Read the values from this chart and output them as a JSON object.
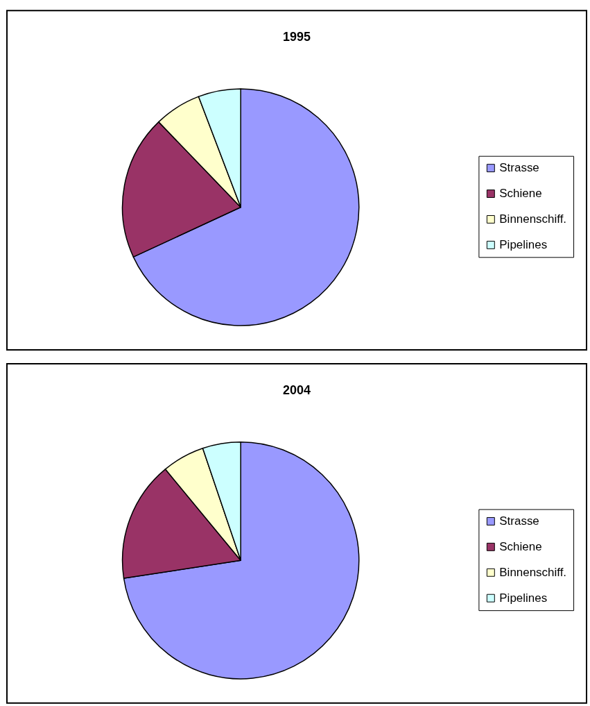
{
  "chart_data": [
    {
      "type": "pie",
      "title": "1995",
      "categories": [
        "Strasse",
        "Schiene",
        "Binnenschiff.",
        "Pipelines"
      ],
      "values": [
        68.1,
        19.7,
        6.4,
        5.8
      ],
      "colors": [
        "#9999ff",
        "#993366",
        "#ffffcc",
        "#ccffff"
      ],
      "legend": "right"
    },
    {
      "type": "pie",
      "title": "2004",
      "categories": [
        "Strasse",
        "Schiene",
        "Binnenschiff.",
        "Pipelines"
      ],
      "values": [
        72.6,
        16.4,
        5.8,
        5.2
      ],
      "colors": [
        "#9999ff",
        "#993366",
        "#ffffcc",
        "#ccffff"
      ],
      "legend": "right"
    }
  ]
}
